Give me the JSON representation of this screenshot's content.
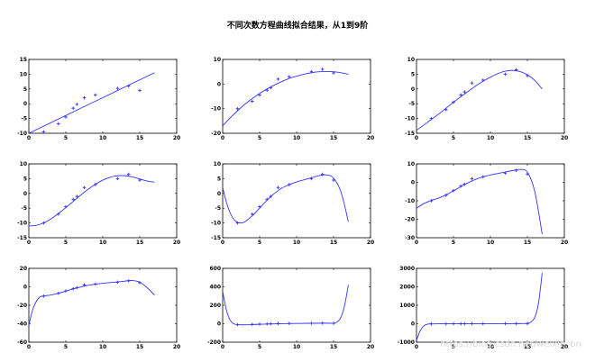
{
  "figure": {
    "title": "不同次数方程曲线拟合结果，从1到9阶",
    "watermark": "https://blog.csdn.net/weixin_bn"
  },
  "style": {
    "line_color": "#3333ff",
    "marker_color": "#3333ff",
    "axes_color": "#000000"
  },
  "chart_data": [
    {
      "type": "line",
      "degree": 1,
      "xlim": [
        0,
        20
      ],
      "ylim": [
        -10,
        15
      ],
      "xticks": [
        0,
        5,
        10,
        15,
        20
      ],
      "yticks": [
        -10,
        -5,
        0,
        5,
        10,
        15
      ],
      "points": [
        [
          2,
          -9.5
        ],
        [
          4,
          -6.8
        ],
        [
          5,
          -4.5
        ],
        [
          6,
          -1.5
        ],
        [
          6.5,
          -0.2
        ],
        [
          7.5,
          2
        ],
        [
          9,
          3
        ],
        [
          12,
          5.2
        ],
        [
          13.5,
          6
        ],
        [
          15,
          4.5
        ]
      ],
      "curve": [
        [
          0,
          -10
        ],
        [
          17,
          10.5
        ]
      ]
    },
    {
      "type": "line",
      "degree": 2,
      "xlim": [
        0,
        20
      ],
      "ylim": [
        -20,
        10
      ],
      "xticks": [
        0,
        5,
        10,
        15,
        20
      ],
      "yticks": [
        -20,
        -10,
        0,
        10
      ],
      "points": [
        [
          2,
          -10
        ],
        [
          4,
          -7
        ],
        [
          5,
          -4.5
        ],
        [
          6,
          -2.5
        ],
        [
          6.5,
          -1.5
        ],
        [
          7.5,
          2
        ],
        [
          9,
          3
        ],
        [
          12,
          5
        ],
        [
          13.5,
          6
        ],
        [
          15,
          4.5
        ]
      ],
      "curve": [
        [
          0,
          -17
        ],
        [
          1,
          -13.8
        ],
        [
          2,
          -10.9
        ],
        [
          3,
          -8.2
        ],
        [
          4,
          -5.9
        ],
        [
          5,
          -3.8
        ],
        [
          6,
          -2
        ],
        [
          7,
          -0.4
        ],
        [
          8,
          1
        ],
        [
          9,
          2.3
        ],
        [
          10,
          3.2
        ],
        [
          11,
          4
        ],
        [
          12,
          4.6
        ],
        [
          13,
          5
        ],
        [
          14,
          5.1
        ],
        [
          15,
          5
        ],
        [
          16,
          4.6
        ],
        [
          17,
          4
        ]
      ]
    },
    {
      "type": "line",
      "degree": 3,
      "xlim": [
        0,
        20
      ],
      "ylim": [
        -15,
        10
      ],
      "xticks": [
        0,
        5,
        10,
        15,
        20
      ],
      "yticks": [
        -15,
        -10,
        -5,
        0,
        5,
        10
      ],
      "points": [
        [
          2,
          -10
        ],
        [
          4,
          -7
        ],
        [
          5,
          -4.5
        ],
        [
          6,
          -2
        ],
        [
          6.5,
          -1
        ],
        [
          7.5,
          2
        ],
        [
          9,
          3
        ],
        [
          12,
          5
        ],
        [
          13.5,
          6.5
        ],
        [
          15,
          4.5
        ]
      ],
      "curve": [
        [
          0,
          -14
        ],
        [
          1,
          -12.2
        ],
        [
          2,
          -10.3
        ],
        [
          3,
          -8.5
        ],
        [
          4,
          -6.5
        ],
        [
          5,
          -4.5
        ],
        [
          6,
          -2.6
        ],
        [
          7,
          -0.8
        ],
        [
          8,
          1
        ],
        [
          9,
          2.6
        ],
        [
          10,
          4
        ],
        [
          11,
          5.2
        ],
        [
          12,
          6
        ],
        [
          13,
          6.3
        ],
        [
          14,
          5.9
        ],
        [
          15,
          4.8
        ],
        [
          16,
          2.9
        ],
        [
          17,
          0
        ]
      ]
    },
    {
      "type": "line",
      "degree": 4,
      "xlim": [
        0,
        20
      ],
      "ylim": [
        -15,
        10
      ],
      "xticks": [
        0,
        5,
        10,
        15,
        20
      ],
      "yticks": [
        -15,
        -10,
        -5,
        0,
        5,
        10
      ],
      "points": [
        [
          2,
          -10
        ],
        [
          4,
          -7
        ],
        [
          5,
          -4.5
        ],
        [
          6,
          -2
        ],
        [
          6.5,
          -1
        ],
        [
          7.5,
          2
        ],
        [
          9,
          3
        ],
        [
          12,
          5
        ],
        [
          13.5,
          6.5
        ],
        [
          15,
          4.5
        ]
      ],
      "curve": [
        [
          0,
          -11
        ],
        [
          1,
          -10.8
        ],
        [
          2,
          -10
        ],
        [
          3,
          -8.6
        ],
        [
          4,
          -6.8
        ],
        [
          5,
          -4.8
        ],
        [
          6,
          -2.7
        ],
        [
          7,
          -0.6
        ],
        [
          8,
          1.4
        ],
        [
          9,
          3.1
        ],
        [
          10,
          4.5
        ],
        [
          11,
          5.5
        ],
        [
          12,
          6
        ],
        [
          13,
          6
        ],
        [
          14,
          5.6
        ],
        [
          15,
          4.9
        ],
        [
          16,
          4.2
        ],
        [
          17,
          3.8
        ]
      ]
    },
    {
      "type": "line",
      "degree": 5,
      "xlim": [
        0,
        20
      ],
      "ylim": [
        -15,
        10
      ],
      "xticks": [
        0,
        5,
        10,
        15,
        20
      ],
      "yticks": [
        -15,
        -10,
        -5,
        0,
        5,
        10
      ],
      "points": [
        [
          2,
          -10
        ],
        [
          4,
          -7
        ],
        [
          5,
          -4.5
        ],
        [
          6,
          -2
        ],
        [
          6.5,
          -1
        ],
        [
          7.5,
          2
        ],
        [
          9,
          3
        ],
        [
          12,
          5
        ],
        [
          13.5,
          6.5
        ],
        [
          15,
          4.5
        ]
      ],
      "curve": [
        [
          0,
          2
        ],
        [
          0.5,
          -3
        ],
        [
          1,
          -6.5
        ],
        [
          1.5,
          -8.8
        ],
        [
          2,
          -9.8
        ],
        [
          2.5,
          -10
        ],
        [
          3,
          -9.6
        ],
        [
          4,
          -7.6
        ],
        [
          5,
          -5
        ],
        [
          6,
          -2.3
        ],
        [
          7,
          0
        ],
        [
          8,
          1.8
        ],
        [
          9,
          3
        ],
        [
          10,
          3.9
        ],
        [
          11,
          4.6
        ],
        [
          12,
          5.3
        ],
        [
          13,
          6
        ],
        [
          14,
          6.3
        ],
        [
          15,
          5.2
        ],
        [
          16,
          0.5
        ],
        [
          17,
          -9.5
        ]
      ]
    },
    {
      "type": "line",
      "degree": 6,
      "xlim": [
        0,
        20
      ],
      "ylim": [
        -30,
        10
      ],
      "xticks": [
        0,
        5,
        10,
        15,
        20
      ],
      "yticks": [
        -30,
        -20,
        -10,
        0,
        10
      ],
      "points": [
        [
          2,
          -10
        ],
        [
          4,
          -7
        ],
        [
          5,
          -4.5
        ],
        [
          6,
          -2
        ],
        [
          6.5,
          -1
        ],
        [
          7.5,
          2
        ],
        [
          9,
          3
        ],
        [
          12,
          5
        ],
        [
          13.5,
          6.5
        ],
        [
          15,
          4.5
        ]
      ],
      "curve": [
        [
          0,
          -14
        ],
        [
          1,
          -11.5
        ],
        [
          2,
          -9.8
        ],
        [
          3,
          -8.5
        ],
        [
          4,
          -6.8
        ],
        [
          5,
          -4.6
        ],
        [
          6,
          -2.3
        ],
        [
          7,
          -0.2
        ],
        [
          8,
          1.6
        ],
        [
          9,
          3
        ],
        [
          10,
          4
        ],
        [
          11,
          4.8
        ],
        [
          12,
          5.6
        ],
        [
          13,
          6.4
        ],
        [
          14,
          7
        ],
        [
          15,
          5.5
        ],
        [
          16,
          -5
        ],
        [
          17,
          -28
        ]
      ]
    },
    {
      "type": "line",
      "degree": 7,
      "xlim": [
        0,
        20
      ],
      "ylim": [
        -60,
        20
      ],
      "xticks": [
        0,
        5,
        10,
        15,
        20
      ],
      "yticks": [
        -60,
        -40,
        -20,
        0,
        20
      ],
      "points": [
        [
          2,
          -10
        ],
        [
          4,
          -7
        ],
        [
          5,
          -4.5
        ],
        [
          6,
          -2
        ],
        [
          6.5,
          -1
        ],
        [
          7.5,
          2
        ],
        [
          9,
          3
        ],
        [
          12,
          5
        ],
        [
          13.5,
          6.5
        ],
        [
          15,
          4.5
        ]
      ],
      "curve": [
        [
          0,
          -42
        ],
        [
          0.5,
          -25
        ],
        [
          1,
          -16
        ],
        [
          1.5,
          -11
        ],
        [
          2,
          -10
        ],
        [
          3,
          -8.8
        ],
        [
          4,
          -7
        ],
        [
          5,
          -4.7
        ],
        [
          6,
          -2.3
        ],
        [
          7,
          -0.2
        ],
        [
          8,
          1.6
        ],
        [
          9,
          2.9
        ],
        [
          10,
          3.8
        ],
        [
          11,
          4.6
        ],
        [
          12,
          5.3
        ],
        [
          13,
          6.2
        ],
        [
          14,
          6.8
        ],
        [
          15,
          5
        ],
        [
          16,
          -1
        ],
        [
          17,
          -9
        ]
      ]
    },
    {
      "type": "line",
      "degree": 8,
      "xlim": [
        0,
        20
      ],
      "ylim": [
        -200,
        600
      ],
      "xticks": [
        0,
        5,
        10,
        15,
        20
      ],
      "yticks": [
        -200,
        0,
        200,
        400,
        600
      ],
      "points": [
        [
          2,
          -10
        ],
        [
          4,
          -7
        ],
        [
          5,
          -4.5
        ],
        [
          6,
          -2
        ],
        [
          6.5,
          -1
        ],
        [
          7.5,
          2
        ],
        [
          9,
          3
        ],
        [
          12,
          5
        ],
        [
          13.5,
          6.5
        ],
        [
          15,
          4.5
        ]
      ],
      "curve": [
        [
          0,
          350
        ],
        [
          0.5,
          150
        ],
        [
          1,
          40
        ],
        [
          1.5,
          0
        ],
        [
          2,
          -10
        ],
        [
          3,
          -12
        ],
        [
          5,
          -6
        ],
        [
          8,
          1
        ],
        [
          12,
          5
        ],
        [
          14,
          6
        ],
        [
          15,
          5
        ],
        [
          15.5,
          20
        ],
        [
          16,
          70
        ],
        [
          16.5,
          200
        ],
        [
          17,
          420
        ]
      ]
    },
    {
      "type": "line",
      "degree": 9,
      "xlim": [
        0,
        20
      ],
      "ylim": [
        -1000,
        3000
      ],
      "xticks": [
        0,
        5,
        10,
        15,
        20
      ],
      "yticks": [
        -1000,
        0,
        1000,
        2000,
        3000
      ],
      "points": [
        [
          2,
          -10
        ],
        [
          4,
          -7
        ],
        [
          5,
          -4.5
        ],
        [
          6,
          -2
        ],
        [
          6.5,
          -1
        ],
        [
          7.5,
          2
        ],
        [
          9,
          3
        ],
        [
          12,
          5
        ],
        [
          13.5,
          6.5
        ],
        [
          15,
          4.5
        ]
      ],
      "curve": [
        [
          0,
          -900
        ],
        [
          0.5,
          -380
        ],
        [
          1,
          -120
        ],
        [
          1.5,
          -20
        ],
        [
          2,
          -10
        ],
        [
          3,
          -5
        ],
        [
          5,
          -4
        ],
        [
          8,
          2
        ],
        [
          12,
          5
        ],
        [
          14,
          6
        ],
        [
          15,
          20
        ],
        [
          15.5,
          100
        ],
        [
          16,
          350
        ],
        [
          16.5,
          1100
        ],
        [
          17,
          2750
        ]
      ]
    }
  ]
}
